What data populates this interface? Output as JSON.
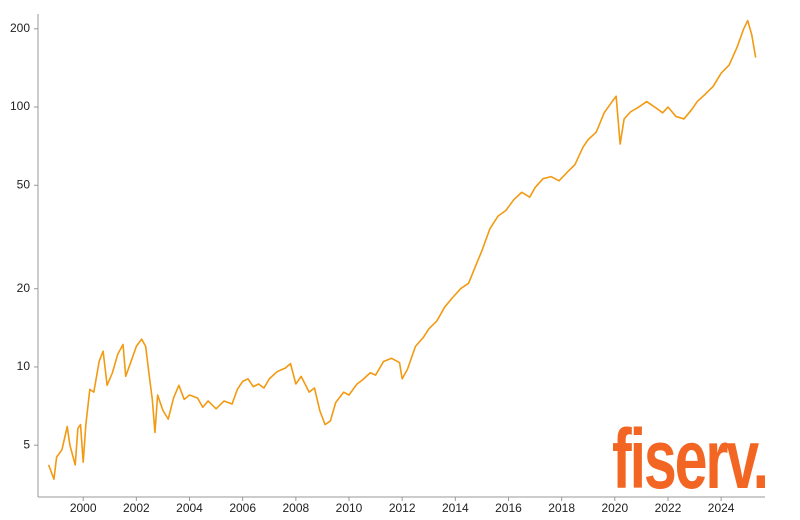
{
  "chart_data": {
    "type": "line",
    "log_scale": true,
    "color": "#f29a12",
    "logo": "fiserv.",
    "logo_color": "#f26522",
    "xlim": [
      1998.3,
      2025.65
    ],
    "ylim": [
      3.16,
      228
    ],
    "xticks": [
      2000,
      2002,
      2004,
      2006,
      2008,
      2010,
      2012,
      2014,
      2016,
      2018,
      2020,
      2022,
      2024
    ],
    "yticks": [
      5,
      10,
      20,
      50,
      100,
      200
    ],
    "x": [
      1998.7,
      1998.9,
      1999.0,
      1999.2,
      1999.4,
      1999.5,
      1999.7,
      1999.8,
      1999.9,
      2000.0,
      2000.1,
      2000.25,
      2000.4,
      2000.6,
      2000.75,
      2000.9,
      2001.1,
      2001.3,
      2001.5,
      2001.6,
      2001.8,
      2002.0,
      2002.2,
      2002.35,
      2002.5,
      2002.6,
      2002.7,
      2002.8,
      2003.0,
      2003.2,
      2003.4,
      2003.6,
      2003.8,
      2004.0,
      2004.3,
      2004.5,
      2004.7,
      2005.0,
      2005.3,
      2005.6,
      2005.8,
      2006.0,
      2006.2,
      2006.4,
      2006.6,
      2006.8,
      2007.0,
      2007.3,
      2007.6,
      2007.8,
      2008.0,
      2008.2,
      2008.5,
      2008.7,
      2008.9,
      2009.1,
      2009.3,
      2009.5,
      2009.8,
      2010.0,
      2010.3,
      2010.5,
      2010.8,
      2011.0,
      2011.3,
      2011.6,
      2011.9,
      2012.0,
      2012.2,
      2012.5,
      2012.8,
      2013.0,
      2013.3,
      2013.6,
      2013.9,
      2014.2,
      2014.5,
      2014.8,
      2015.0,
      2015.3,
      2015.6,
      2015.9,
      2016.2,
      2016.5,
      2016.8,
      2017.0,
      2017.3,
      2017.6,
      2017.9,
      2018.2,
      2018.5,
      2018.8,
      2019.0,
      2019.3,
      2019.6,
      2019.9,
      2020.05,
      2020.2,
      2020.35,
      2020.6,
      2020.9,
      2021.2,
      2021.5,
      2021.8,
      2022.0,
      2022.3,
      2022.6,
      2022.9,
      2023.1,
      2023.4,
      2023.7,
      2024.0,
      2024.3,
      2024.6,
      2024.85,
      2025.0,
      2025.15,
      2025.3
    ],
    "values": [
      4.2,
      3.7,
      4.5,
      4.8,
      5.9,
      5.0,
      4.2,
      5.8,
      6.0,
      4.3,
      6.0,
      8.2,
      8.0,
      10.5,
      11.5,
      8.5,
      9.5,
      11.2,
      12.2,
      9.2,
      10.5,
      12.0,
      12.8,
      12.0,
      9.0,
      7.5,
      5.6,
      7.8,
      6.8,
      6.3,
      7.6,
      8.5,
      7.5,
      7.8,
      7.6,
      7.0,
      7.4,
      6.9,
      7.4,
      7.2,
      8.2,
      8.8,
      9.0,
      8.4,
      8.6,
      8.3,
      9.0,
      9.6,
      9.9,
      10.3,
      8.6,
      9.2,
      8.0,
      8.3,
      6.8,
      6.0,
      6.2,
      7.3,
      8.0,
      7.8,
      8.6,
      8.9,
      9.5,
      9.3,
      10.5,
      10.8,
      10.4,
      9.0,
      9.8,
      12.0,
      13.0,
      14.0,
      15.0,
      17.0,
      18.5,
      20.0,
      21.0,
      25,
      28,
      34,
      38,
      40,
      44,
      47,
      45,
      49,
      53,
      54,
      52,
      56,
      60,
      70,
      75,
      80,
      95,
      105,
      110,
      72,
      90,
      96,
      100,
      105,
      100,
      95,
      100,
      92,
      90,
      98,
      105,
      112,
      120,
      135,
      145,
      170,
      200,
      215,
      190,
      155
    ]
  }
}
